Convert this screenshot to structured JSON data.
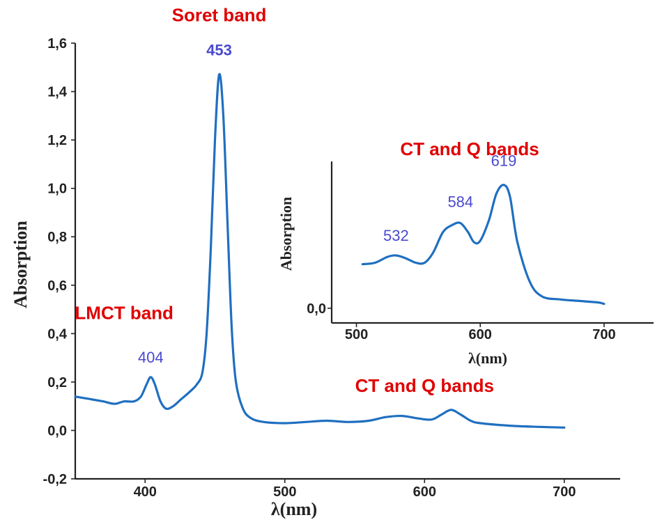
{
  "chart_data": [
    {
      "type": "line",
      "xlabel": "λ(nm)",
      "ylabel": "Absorption",
      "xlim": [
        350,
        740
      ],
      "ylim": [
        -0.2,
        1.6
      ],
      "x_ticks": [
        400,
        500,
        600,
        700
      ],
      "x_tick_labels": [
        "400",
        "500",
        "600",
        "700"
      ],
      "y_ticks": [
        -0.2,
        0.0,
        0.2,
        0.4,
        0.6,
        0.8,
        1.0,
        1.2,
        1.4,
        1.6
      ],
      "y_tick_labels": [
        "-0,2",
        "0,0",
        "0,2",
        "0,4",
        "0,6",
        "0,8",
        "1,0",
        "1,2",
        "1,4",
        "1,6"
      ],
      "grid": false,
      "color": "#1f6fc0",
      "series": [
        {
          "x": [
            350,
            360,
            370,
            378,
            385,
            392,
            397,
            401,
            404,
            407,
            411,
            415,
            420,
            426,
            432,
            437,
            441,
            444,
            447,
            450,
            453,
            456,
            459,
            462,
            465,
            470,
            476,
            485,
            500,
            515,
            530,
            545,
            560,
            572,
            584,
            595,
            605,
            612,
            619,
            626,
            633,
            640,
            660,
            680,
            700
          ],
          "y": [
            0.14,
            0.13,
            0.12,
            0.11,
            0.12,
            0.12,
            0.14,
            0.19,
            0.22,
            0.19,
            0.12,
            0.09,
            0.1,
            0.13,
            0.16,
            0.19,
            0.24,
            0.4,
            0.75,
            1.2,
            1.47,
            1.3,
            0.85,
            0.42,
            0.2,
            0.09,
            0.05,
            0.035,
            0.03,
            0.035,
            0.04,
            0.035,
            0.04,
            0.055,
            0.06,
            0.05,
            0.045,
            0.065,
            0.085,
            0.065,
            0.04,
            0.03,
            0.02,
            0.015,
            0.012
          ]
        }
      ],
      "annotations": [
        {
          "text": "Soret band",
          "x": 453,
          "y": 1.69,
          "color": "#e00000"
        },
        {
          "text": "453",
          "x": 453,
          "y": 1.55,
          "color": "#4a4ad0"
        },
        {
          "text": "LMCT band",
          "x": 385,
          "y": 0.46,
          "color": "#e00000"
        },
        {
          "text": "404",
          "x": 404,
          "y": 0.28,
          "color": "#4a4ad0"
        },
        {
          "text": "CT and Q bands",
          "x": 600,
          "y": 0.16,
          "color": "#e00000"
        }
      ]
    },
    {
      "type": "line",
      "title": "CT and Q bands",
      "xlabel": "λ(nm)",
      "ylabel": "Absorption",
      "xlim": [
        480,
        740
      ],
      "ylim": [
        -0.1,
        1.0
      ],
      "x_ticks": [
        500,
        600,
        700
      ],
      "x_tick_labels": [
        "500",
        "600",
        "700"
      ],
      "y_ticks": [
        0.0
      ],
      "y_tick_labels": [
        "0,0"
      ],
      "grid": false,
      "color": "#1f6fc0",
      "series": [
        {
          "x": [
            505,
            515,
            525,
            532,
            540,
            548,
            555,
            562,
            570,
            578,
            584,
            590,
            595,
            600,
            607,
            613,
            619,
            624,
            630,
            640,
            650,
            665,
            680,
            695,
            700
          ],
          "y": [
            0.3,
            0.31,
            0.35,
            0.36,
            0.34,
            0.31,
            0.31,
            0.38,
            0.52,
            0.57,
            0.58,
            0.52,
            0.45,
            0.46,
            0.6,
            0.78,
            0.84,
            0.76,
            0.45,
            0.18,
            0.08,
            0.06,
            0.05,
            0.04,
            0.03
          ]
        }
      ],
      "annotations": [
        {
          "text": "532",
          "x": 532,
          "y": 0.46
        },
        {
          "text": "584",
          "x": 584,
          "y": 0.69
        },
        {
          "text": "619",
          "x": 619,
          "y": 0.97
        }
      ]
    }
  ]
}
